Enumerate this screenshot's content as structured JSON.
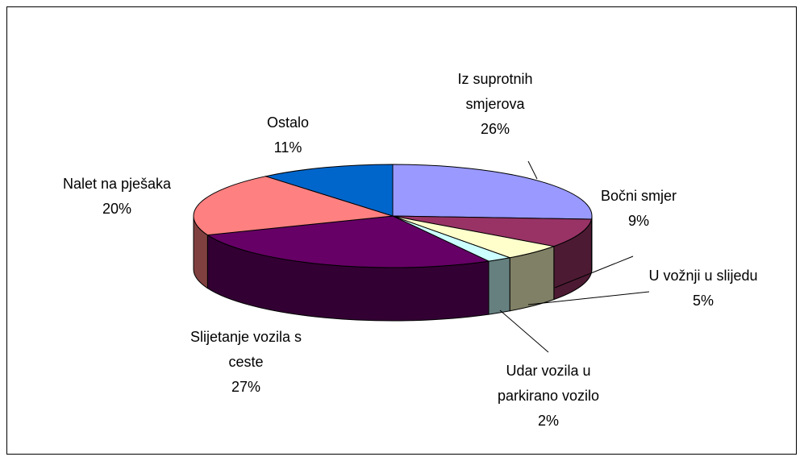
{
  "chart_data": {
    "type": "pie",
    "categories": [
      "Iz suprotnih smjerova",
      "Bočni smjer",
      "U vožnji u slijedu",
      "Udar vozila u parkirano vozilo",
      "Slijetanje vozila s ceste",
      "Nalet na pješaka",
      "Ostalo"
    ],
    "values": [
      26,
      9,
      5,
      2,
      27,
      20,
      11
    ],
    "value_labels": [
      "26%",
      "9%",
      "5%",
      "2%",
      "27%",
      "20%",
      "11%"
    ],
    "colors": [
      "#9999ff",
      "#993366",
      "#ffffcc",
      "#ccffff",
      "#660066",
      "#ff8080",
      "#0066cc"
    ]
  }
}
